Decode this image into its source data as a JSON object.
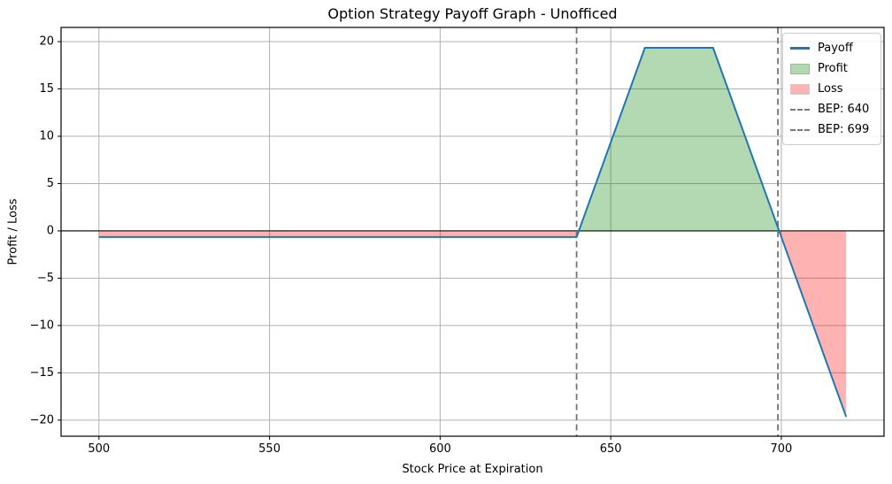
{
  "figure": {
    "title": "Option Strategy Payoff Graph - Unofficed"
  },
  "chart_data": {
    "type": "line",
    "title": "Option Strategy Payoff Graph - Unofficed",
    "xlabel": "Stock Price at Expiration",
    "ylabel": "Profit / Loss",
    "xlim": [
      488.9,
      730.1
    ],
    "ylim": [
      -21.7,
      21.5
    ],
    "xticks": [
      500,
      550,
      600,
      650,
      700
    ],
    "yticks": [
      -20,
      -15,
      -10,
      -5,
      0,
      5,
      10,
      15,
      20
    ],
    "grid": true,
    "grid_color": "#b0b0b0",
    "axis_color": "#000000",
    "zero_line": {
      "y": 0,
      "color": "#000000"
    },
    "series": [
      {
        "name": "Payoff",
        "color": "#1f77b4",
        "points": [
          [
            500,
            -0.65
          ],
          [
            640,
            -0.65
          ],
          [
            660,
            19.35
          ],
          [
            680,
            19.35
          ],
          [
            719,
            -19.65
          ]
        ]
      }
    ],
    "regions": [
      {
        "name": "Loss",
        "color": "#ff0000",
        "opacity": 0.3,
        "polygon": [
          [
            500,
            0
          ],
          [
            640.65,
            0
          ],
          [
            640,
            -0.65
          ],
          [
            500,
            -0.65
          ]
        ]
      },
      {
        "name": "Profit",
        "color": "#008000",
        "opacity": 0.3,
        "polygon": [
          [
            640.65,
            0
          ],
          [
            660,
            19.35
          ],
          [
            680,
            19.35
          ],
          [
            699.35,
            0
          ]
        ]
      },
      {
        "name": "Loss",
        "color": "#ff0000",
        "opacity": 0.3,
        "polygon": [
          [
            699.35,
            0
          ],
          [
            719,
            0
          ],
          [
            719,
            -19.65
          ]
        ]
      }
    ],
    "bep_lines": [
      {
        "label": "BEP: 640",
        "x": 640,
        "color": "#757575",
        "style": "dashed"
      },
      {
        "label": "BEP: 699",
        "x": 699,
        "color": "#757575",
        "style": "dashed"
      }
    ],
    "legend": {
      "position": "upper-right",
      "entries": [
        {
          "label": "Payoff",
          "type": "line",
          "color": "#1f77b4"
        },
        {
          "label": "Profit",
          "type": "patch",
          "fill": "#b2d8b2",
          "edge": "#9cba9c"
        },
        {
          "label": "Loss",
          "type": "patch",
          "fill": "#ffb3b3",
          "edge": "#ccc"
        },
        {
          "label": "BEP: 640",
          "type": "dashed-line",
          "color": "#7a7a7a"
        },
        {
          "label": "BEP: 699",
          "type": "dashed-line",
          "color": "#7a7a7a"
        }
      ]
    }
  }
}
